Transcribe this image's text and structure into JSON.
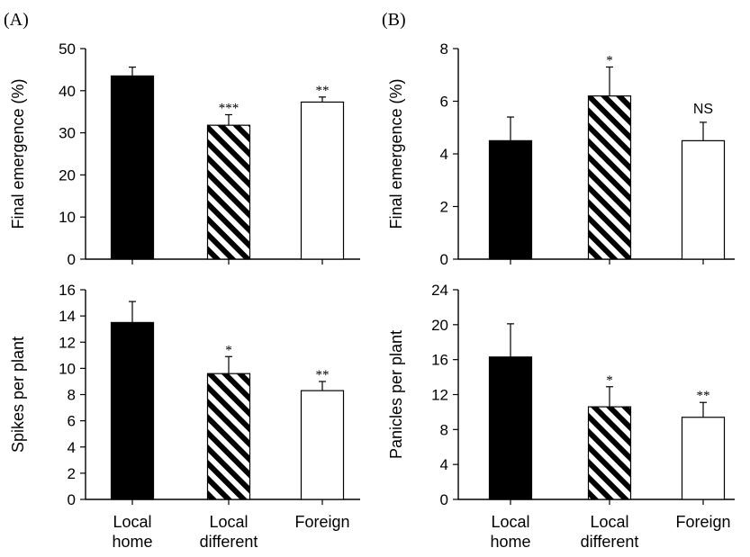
{
  "panels": {
    "a": "(A)",
    "b": "(B)"
  },
  "x_labels": [
    [
      "Local",
      "home"
    ],
    [
      "Local",
      "different"
    ],
    [
      "Foreign"
    ]
  ],
  "colors": {
    "bar_black": "#000000",
    "bar_white": "#ffffff",
    "axis": "#000000"
  },
  "bar_styles": [
    "solid-black",
    "diagonal-hatch",
    "white"
  ],
  "chart_data": [
    {
      "id": "A-top",
      "type": "bar",
      "panel": "(A)",
      "ylabel": "Final emergence (%)",
      "categories": [
        "Local home",
        "Local different",
        "Foreign"
      ],
      "values": [
        43.5,
        31.8,
        37.3
      ],
      "errors": [
        2.1,
        2.5,
        1.2
      ],
      "significance": [
        "",
        "***",
        "**"
      ],
      "ylim": [
        0,
        50
      ],
      "yticks": [
        0,
        10,
        20,
        30,
        40,
        50
      ]
    },
    {
      "id": "A-bottom",
      "type": "bar",
      "panel": "(A)",
      "ylabel": "Spikes per plant",
      "categories": [
        "Local home",
        "Local different",
        "Foreign"
      ],
      "values": [
        13.5,
        9.6,
        8.3
      ],
      "errors": [
        1.6,
        1.3,
        0.7
      ],
      "significance": [
        "",
        "*",
        "**"
      ],
      "ylim": [
        0,
        16
      ],
      "yticks": [
        0,
        2,
        4,
        6,
        8,
        10,
        12,
        14,
        16
      ]
    },
    {
      "id": "B-top",
      "type": "bar",
      "panel": "(B)",
      "ylabel": "Final emergence (%)",
      "categories": [
        "Local home",
        "Local different",
        "Foreign"
      ],
      "values": [
        4.5,
        6.2,
        4.5
      ],
      "errors": [
        0.9,
        1.1,
        0.7
      ],
      "significance": [
        "",
        "*",
        "NS"
      ],
      "ylim": [
        0,
        8
      ],
      "yticks": [
        0,
        2,
        4,
        6,
        8
      ]
    },
    {
      "id": "B-bottom",
      "type": "bar",
      "panel": "(B)",
      "ylabel": "Panicles per plant",
      "categories": [
        "Local home",
        "Local different",
        "Foreign"
      ],
      "values": [
        16.3,
        10.6,
        9.4
      ],
      "errors": [
        3.8,
        2.3,
        1.7
      ],
      "significance": [
        "",
        "*",
        "**"
      ],
      "ylim": [
        0,
        24
      ],
      "yticks": [
        0,
        4,
        8,
        12,
        16,
        20,
        24
      ]
    }
  ]
}
